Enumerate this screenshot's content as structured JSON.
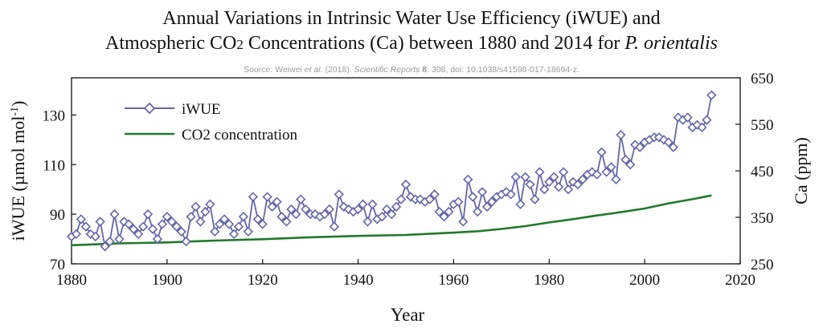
{
  "header": {
    "title_line1": "Annual Variations in Intrinsic Water Use Efficiency (iWUE) and",
    "title_line2_prefix": "Atmospheric CO",
    "title_line2_sub": "2",
    "title_line2_middle": " Concentrations (Ca) between 1880 and 2014 for ",
    "title_line2_species": "P. orientalis",
    "source_prefix": "Source: Weiwei ",
    "source_etal": "et al.",
    "source_year": " (2018). ",
    "source_journal": "Scientific Reports",
    "source_volume": " 8",
    "source_rest": ": 308, doi: 10.1038/s41598-017-18694-z."
  },
  "colors": {
    "iwue": "#6366a8",
    "co2": "#1f7a2b",
    "axis": "#111111"
  },
  "chart_data": {
    "type": "line",
    "xlabel": "Year",
    "ylabel_left": "iWUE (µmol mol⁻¹)",
    "ylabel_left_text": "iWUE (µmol mol",
    "ylabel_left_sup": "-1",
    "ylabel_left_close": ")",
    "ylabel_right": "Ca (ppm)",
    "xlim": [
      1880,
      2020
    ],
    "ylim_left": [
      70,
      145
    ],
    "ylim_right": [
      250,
      650
    ],
    "xticks": [
      1880,
      1900,
      1920,
      1940,
      1960,
      1980,
      2000,
      2020
    ],
    "yticks_left": [
      70,
      90,
      110,
      130
    ],
    "yticks_right": [
      250,
      350,
      450,
      550,
      650
    ],
    "legend": {
      "position": "top-left",
      "iwue_label": "iWUE",
      "co2_label": "CO2 concentration"
    },
    "series": [
      {
        "name": "iWUE",
        "axis": "left",
        "marker": "diamond",
        "x": [
          1880,
          1881,
          1882,
          1883,
          1884,
          1885,
          1886,
          1887,
          1888,
          1889,
          1890,
          1891,
          1892,
          1893,
          1894,
          1895,
          1896,
          1897,
          1898,
          1899,
          1900,
          1901,
          1902,
          1903,
          1904,
          1905,
          1906,
          1907,
          1908,
          1909,
          1910,
          1911,
          1912,
          1913,
          1914,
          1915,
          1916,
          1917,
          1918,
          1919,
          1920,
          1921,
          1922,
          1923,
          1924,
          1925,
          1926,
          1927,
          1928,
          1929,
          1930,
          1931,
          1932,
          1933,
          1934,
          1935,
          1936,
          1937,
          1938,
          1939,
          1940,
          1941,
          1942,
          1943,
          1944,
          1945,
          1946,
          1947,
          1948,
          1949,
          1950,
          1951,
          1952,
          1953,
          1954,
          1955,
          1956,
          1957,
          1958,
          1959,
          1960,
          1961,
          1962,
          1963,
          1964,
          1965,
          1966,
          1967,
          1968,
          1969,
          1970,
          1971,
          1972,
          1973,
          1974,
          1975,
          1976,
          1977,
          1978,
          1979,
          1980,
          1981,
          1982,
          1983,
          1984,
          1985,
          1986,
          1987,
          1988,
          1989,
          1990,
          1991,
          1992,
          1993,
          1994,
          1995,
          1996,
          1997,
          1998,
          1999,
          2000,
          2001,
          2002,
          2003,
          2004,
          2005,
          2006,
          2007,
          2008,
          2009,
          2010,
          2011,
          2012,
          2013,
          2014
        ],
        "values": [
          81,
          82,
          88,
          85,
          82,
          81,
          87,
          77,
          79,
          90,
          80,
          87,
          86,
          84,
          82,
          85,
          90,
          84,
          80,
          86,
          89,
          87,
          85,
          83,
          79,
          89,
          93,
          87,
          91,
          94,
          83,
          86,
          88,
          86,
          82,
          85,
          89,
          83,
          97,
          88,
          86,
          97,
          93,
          95,
          89,
          87,
          92,
          90,
          96,
          92,
          90,
          90,
          89,
          90,
          92,
          85,
          98,
          93,
          92,
          91,
          92,
          94,
          87,
          94,
          88,
          89,
          92,
          90,
          93,
          96,
          102,
          97,
          96,
          96,
          95,
          96,
          98,
          91,
          89,
          91,
          94,
          95,
          87,
          104,
          97,
          91,
          99,
          93,
          95,
          97,
          98,
          99,
          98,
          105,
          94,
          105,
          102,
          96,
          107,
          100,
          103,
          105,
          101,
          107,
          100,
          103,
          102,
          104,
          106,
          107,
          106,
          115,
          107,
          109,
          104,
          122,
          112,
          110,
          118,
          117,
          119,
          120,
          121,
          121,
          120,
          119,
          117,
          129,
          128,
          129,
          125,
          126,
          125,
          128,
          138
        ]
      },
      {
        "name": "CO2 concentration",
        "axis": "right",
        "x": [
          1880,
          1890,
          1900,
          1910,
          1920,
          1930,
          1940,
          1950,
          1960,
          1965,
          1970,
          1975,
          1980,
          1985,
          1990,
          1995,
          2000,
          2005,
          2010,
          2014
        ],
        "values": [
          290,
          294,
          296,
          300,
          303,
          307,
          310,
          312,
          317,
          320,
          325,
          331,
          339,
          346,
          354,
          361,
          369,
          380,
          389,
          397
        ]
      }
    ]
  }
}
